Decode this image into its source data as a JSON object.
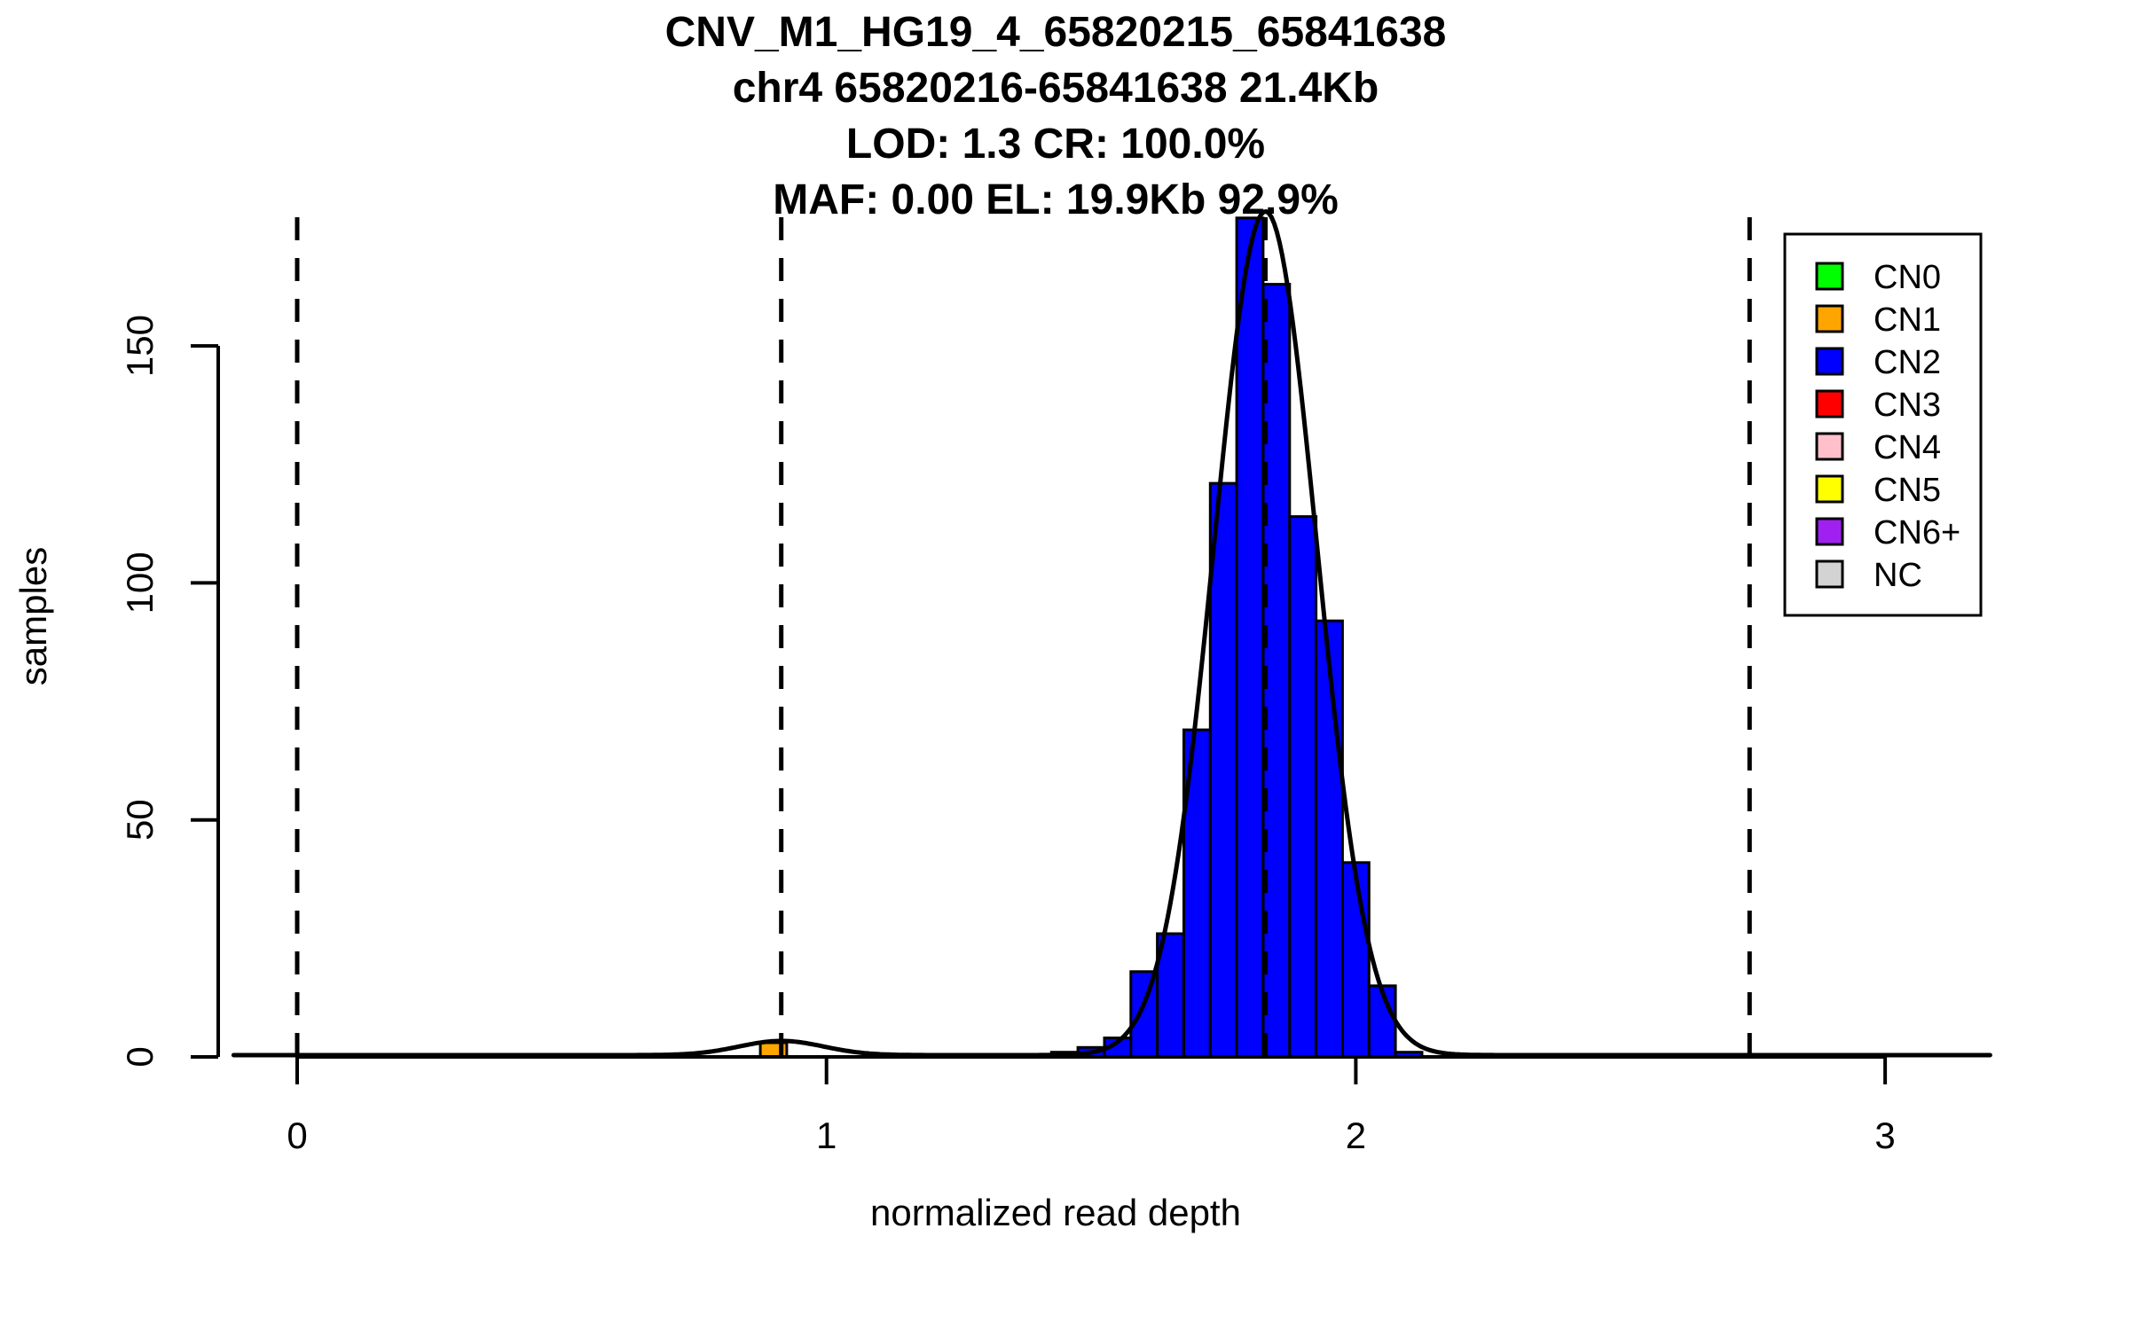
{
  "title": {
    "line1": "CNV_M1_HG19_4_65820215_65841638",
    "line2": "chr4 65820216-65841638 21.4Kb",
    "line3": "LOD: 1.3 CR: 100.0%",
    "line4": "MAF: 0.00 EL: 19.9Kb 92.9%"
  },
  "axes": {
    "x": {
      "label": "normalized read depth",
      "tick_labels": [
        "0",
        "1",
        "2",
        "3"
      ],
      "tick_values": [
        0,
        1,
        2,
        3
      ]
    },
    "y": {
      "label": "samples",
      "tick_labels": [
        "0",
        "50",
        "100",
        "150"
      ],
      "tick_values": [
        0,
        50,
        100,
        150
      ]
    }
  },
  "legend": {
    "items": [
      {
        "label": "CN0",
        "color": "#00FF00"
      },
      {
        "label": "CN1",
        "color": "#FFA500"
      },
      {
        "label": "CN2",
        "color": "#0000FF"
      },
      {
        "label": "CN3",
        "color": "#FF0000"
      },
      {
        "label": "CN4",
        "color": "#FFC0CB"
      },
      {
        "label": "CN5",
        "color": "#FFFF00"
      },
      {
        "label": "CN6+",
        "color": "#A020F0"
      },
      {
        "label": "NC",
        "color": "#D3D3D3"
      }
    ]
  },
  "chart_data": {
    "type": "bar",
    "subtype": "histogram-with-density",
    "title": "CNV_M1_HG19_4_65820215_65841638",
    "xlabel": "normalized read depth",
    "ylabel": "samples",
    "xlim": [
      -0.12,
      3.2
    ],
    "ylim": [
      0,
      177
    ],
    "grid": false,
    "legend_position": "top-right",
    "bin_width": 0.05,
    "series": [
      {
        "name": "CN1",
        "color": "#FFA500",
        "bin_centers": [
          0.9
        ],
        "counts": [
          3
        ]
      },
      {
        "name": "CN2",
        "color": "#0000FF",
        "bin_centers": [
          1.45,
          1.5,
          1.55,
          1.6,
          1.65,
          1.7,
          1.75,
          1.8,
          1.85,
          1.9,
          1.95,
          2.0,
          2.05,
          2.1
        ],
        "counts": [
          1,
          2,
          4,
          18,
          26,
          69,
          121,
          177,
          163,
          114,
          92,
          41,
          15,
          1
        ]
      }
    ],
    "density_curve": {
      "color": "#000000",
      "x_range": [
        -0.12,
        3.2
      ],
      "components": [
        {
          "mu": 0.9146,
          "sigma": 0.08,
          "amplitude": 3
        },
        {
          "mu": 1.8293,
          "sigma": 0.097,
          "amplitude": 178
        }
      ]
    },
    "dashed_guidelines_x": [
      0,
      0.9146,
      1.8293,
      2.7439
    ],
    "bar_border_color": "#000000",
    "background_color": "#FFFFFF"
  }
}
